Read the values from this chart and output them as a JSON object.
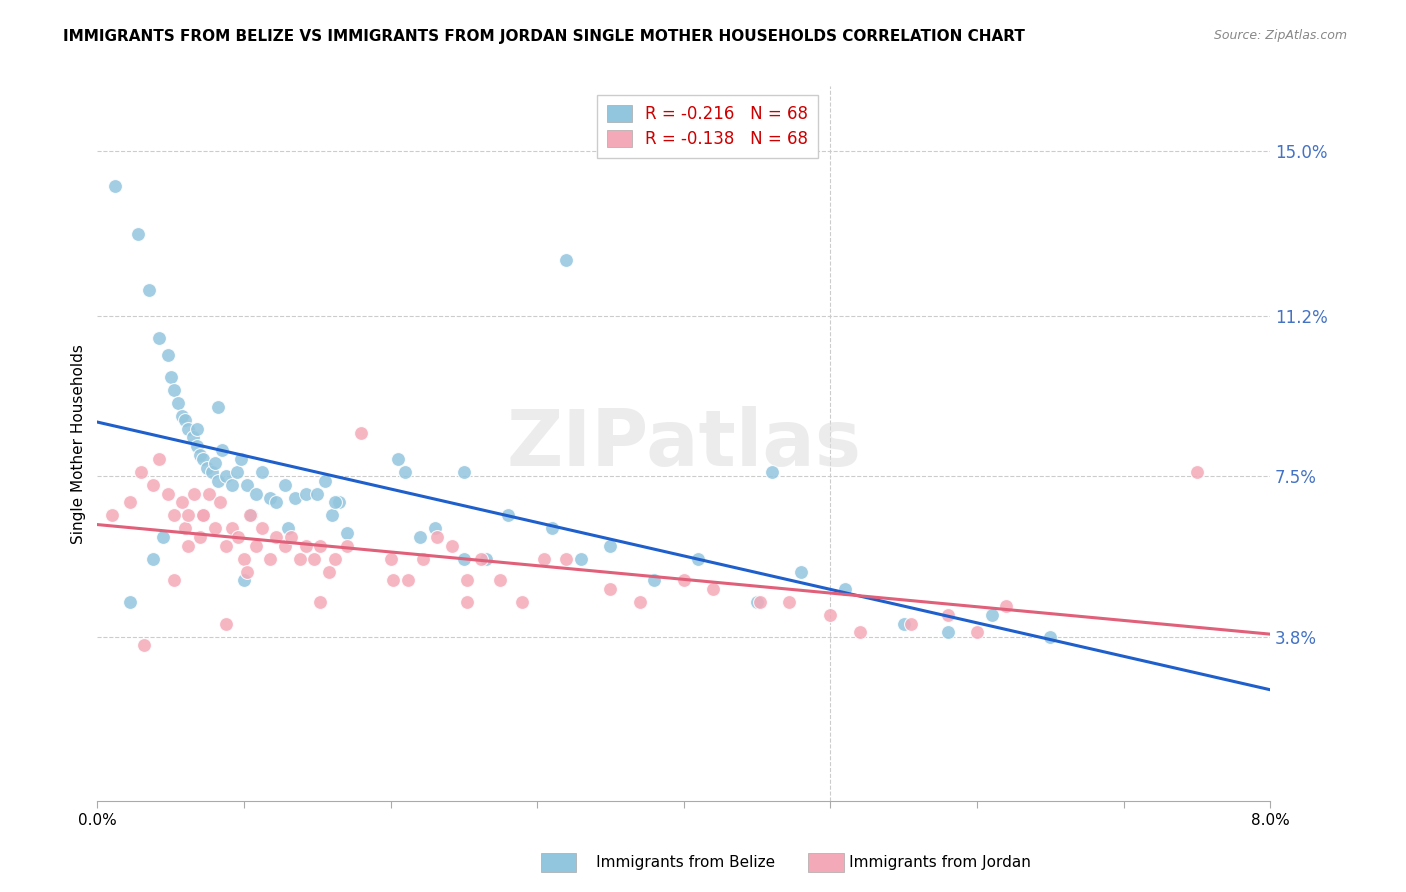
{
  "title": "IMMIGRANTS FROM BELIZE VS IMMIGRANTS FROM JORDAN SINGLE MOTHER HOUSEHOLDS CORRELATION CHART",
  "source": "Source: ZipAtlas.com",
  "ylabel": "Single Mother Households",
  "ytick_labels": [
    "3.8%",
    "7.5%",
    "11.2%",
    "15.0%"
  ],
  "ytick_values": [
    3.8,
    7.5,
    11.2,
    15.0
  ],
  "xlim": [
    0.0,
    8.0
  ],
  "ylim": [
    0.0,
    16.5
  ],
  "legend_r_belize": "R = -0.216",
  "legend_n_belize": "N = 68",
  "legend_r_jordan": "R = -0.138",
  "legend_n_jordan": "N = 68",
  "color_belize": "#92c5de",
  "color_jordan": "#f4a9b8",
  "trendline_belize": "#1f5fcc",
  "trendline_jordan": "#e0607a",
  "watermark": "ZIPatlas",
  "legend_text_color": "#cc0000",
  "right_axis_color": "#4472c4",
  "belize_x": [
    0.12,
    0.28,
    0.35,
    0.42,
    0.48,
    0.5,
    0.52,
    0.55,
    0.58,
    0.6,
    0.62,
    0.65,
    0.68,
    0.7,
    0.72,
    0.75,
    0.78,
    0.8,
    0.82,
    0.85,
    0.88,
    0.92,
    0.95,
    0.98,
    1.02,
    1.05,
    1.08,
    1.12,
    1.18,
    1.22,
    1.28,
    1.35,
    1.42,
    1.5,
    1.55,
    1.6,
    1.65,
    1.7,
    2.05,
    2.2,
    2.3,
    2.5,
    2.65,
    2.8,
    3.1,
    3.3,
    3.5,
    3.8,
    4.1,
    4.5,
    4.8,
    5.1,
    5.5,
    5.8,
    6.1,
    6.5,
    0.22,
    0.38,
    0.45,
    0.68,
    0.82,
    1.0,
    1.3,
    1.62,
    2.1,
    2.5,
    3.2,
    4.6
  ],
  "belize_y": [
    14.2,
    13.1,
    11.8,
    10.7,
    10.3,
    9.8,
    9.5,
    9.2,
    8.9,
    8.8,
    8.6,
    8.4,
    8.2,
    8.0,
    7.9,
    7.7,
    7.6,
    7.8,
    7.4,
    8.1,
    7.5,
    7.3,
    7.6,
    7.9,
    7.3,
    6.6,
    7.1,
    7.6,
    7.0,
    6.9,
    7.3,
    7.0,
    7.1,
    7.1,
    7.4,
    6.6,
    6.9,
    6.2,
    7.9,
    6.1,
    6.3,
    5.6,
    5.6,
    6.6,
    6.3,
    5.6,
    5.9,
    5.1,
    5.6,
    4.6,
    5.3,
    4.9,
    4.1,
    3.9,
    4.3,
    3.8,
    4.6,
    5.6,
    6.1,
    8.6,
    9.1,
    5.1,
    6.3,
    6.9,
    7.6,
    7.6,
    12.5,
    7.6
  ],
  "jordan_x": [
    0.1,
    0.22,
    0.3,
    0.38,
    0.42,
    0.48,
    0.52,
    0.58,
    0.6,
    0.62,
    0.66,
    0.7,
    0.72,
    0.76,
    0.8,
    0.84,
    0.88,
    0.92,
    0.96,
    1.0,
    1.04,
    1.08,
    1.12,
    1.18,
    1.22,
    1.28,
    1.32,
    1.38,
    1.42,
    1.48,
    1.52,
    1.58,
    1.62,
    1.7,
    1.8,
    2.0,
    2.12,
    2.22,
    2.32,
    2.42,
    2.52,
    2.62,
    2.75,
    2.9,
    3.05,
    3.2,
    3.5,
    3.7,
    4.0,
    4.2,
    4.52,
    4.72,
    5.0,
    5.2,
    5.55,
    5.8,
    6.0,
    6.2,
    0.32,
    0.52,
    0.62,
    0.72,
    0.88,
    1.02,
    1.52,
    2.02,
    2.52,
    7.5
  ],
  "jordan_y": [
    6.6,
    6.9,
    7.6,
    7.3,
    7.9,
    7.1,
    6.6,
    6.9,
    6.3,
    6.6,
    7.1,
    6.1,
    6.6,
    7.1,
    6.3,
    6.9,
    5.9,
    6.3,
    6.1,
    5.6,
    6.6,
    5.9,
    6.3,
    5.6,
    6.1,
    5.9,
    6.1,
    5.6,
    5.9,
    5.6,
    5.9,
    5.3,
    5.6,
    5.9,
    8.5,
    5.6,
    5.1,
    5.6,
    6.1,
    5.9,
    5.1,
    5.6,
    5.1,
    4.6,
    5.6,
    5.6,
    4.9,
    4.6,
    5.1,
    4.9,
    4.6,
    4.6,
    4.3,
    3.9,
    4.1,
    4.3,
    3.9,
    4.5,
    3.6,
    5.1,
    5.9,
    6.6,
    4.1,
    5.3,
    4.6,
    5.1,
    4.6,
    7.6
  ]
}
